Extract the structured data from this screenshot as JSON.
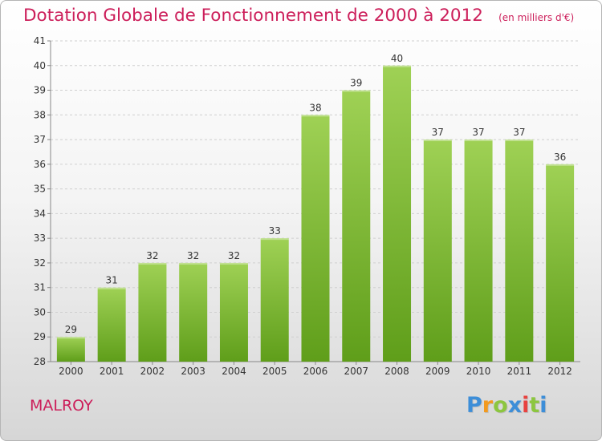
{
  "title": "Dotation Globale de Fonctionnement de 2000 à 2012",
  "subtitle": "(en milliers d'€)",
  "commune": "MALROY",
  "brand": {
    "letters": [
      "P",
      "r",
      "o",
      "x",
      "i",
      "t",
      "i"
    ],
    "colors": [
      "#3d8ed8",
      "#f39a1e",
      "#8cc63f",
      "#3d8ed8",
      "#e8423f",
      "#8cc63f",
      "#3d8ed8"
    ]
  },
  "chart_data": {
    "type": "bar",
    "categories": [
      "2000",
      "2001",
      "2002",
      "2003",
      "2004",
      "2005",
      "2006",
      "2007",
      "2008",
      "2009",
      "2010",
      "2011",
      "2012"
    ],
    "values": [
      29,
      31,
      32,
      32,
      32,
      33,
      38,
      39,
      40,
      37,
      37,
      37,
      36
    ],
    "data_labels": [
      "29",
      "31",
      "32",
      "32",
      "32",
      "33",
      "38",
      "39",
      "40",
      "37",
      "37",
      "37",
      "36"
    ],
    "yticks": [
      "28",
      "29",
      "30",
      "31",
      "32",
      "33",
      "34",
      "35",
      "36",
      "37",
      "38",
      "39",
      "40",
      "41"
    ],
    "ylim": [
      28,
      41
    ],
    "grid": "horizontal",
    "bar_color_top": "#9fd155",
    "bar_color_bottom": "#5f9e1a"
  }
}
